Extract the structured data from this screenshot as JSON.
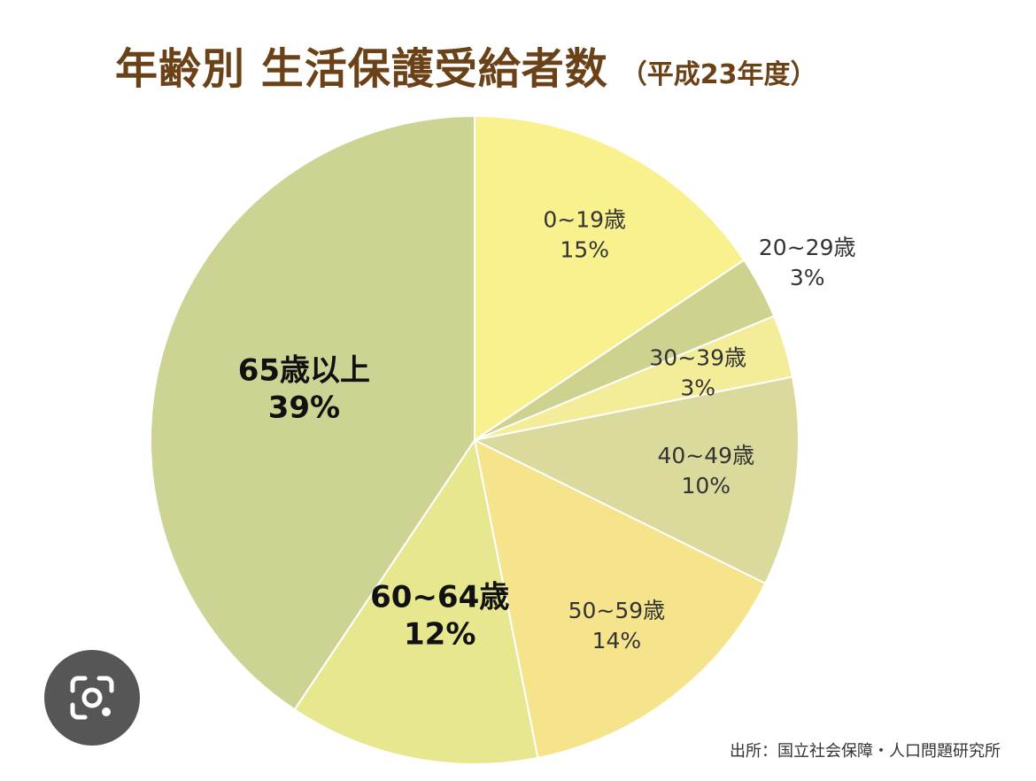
{
  "title": {
    "main": "年齢別 生活保護受給者数",
    "sub": "（平成23年度）"
  },
  "source": "出所：国立社会保障・人口問題研究所",
  "lens_icon": "google-lens-icon",
  "chart_data": {
    "type": "pie",
    "title": "年齢別 生活保護受給者数（平成23年度）",
    "start": "12 o'clock",
    "direction": "clockwise",
    "slices": [
      {
        "label": "0~19歳",
        "value": 15,
        "value_label": "15%",
        "color": "#f9f08e",
        "bold": false
      },
      {
        "label": "20~29歳",
        "value": 3,
        "value_label": "3%",
        "color": "#cdd28e",
        "bold": false
      },
      {
        "label": "30~39歳",
        "value": 3,
        "value_label": "3%",
        "color": "#f3ec98",
        "bold": false
      },
      {
        "label": "40~49歳",
        "value": 10,
        "value_label": "10%",
        "color": "#d9da9c",
        "bold": false
      },
      {
        "label": "50~59歳",
        "value": 14,
        "value_label": "14%",
        "color": "#f5e48c",
        "bold": false
      },
      {
        "label": "60~64歳",
        "value": 12,
        "value_label": "12%",
        "color": "#e6e78e",
        "bold": true
      },
      {
        "label": "65歳以上",
        "value": 39,
        "value_label": "39%",
        "color": "#cdd392",
        "bold": true
      }
    ]
  }
}
